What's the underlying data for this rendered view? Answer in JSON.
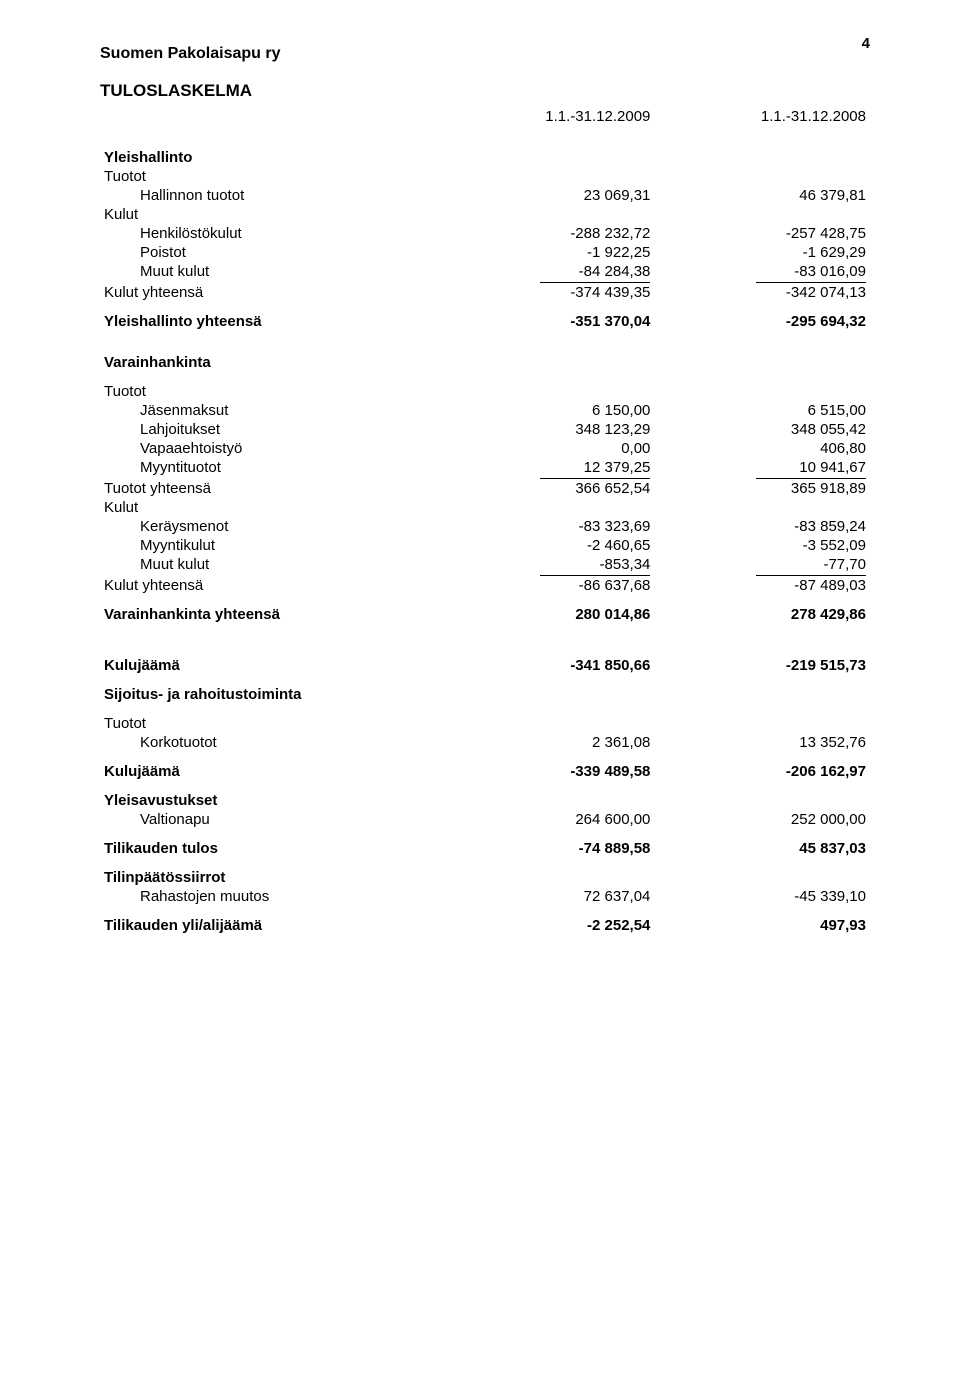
{
  "page_number": "4",
  "header": {
    "org": "Suomen Pakolaisapu ry",
    "title": "TULOSLASKELMA"
  },
  "period": {
    "col1": "1.1.-31.12.2009",
    "col2": "1.1.-31.12.2008"
  },
  "yleishallinto": {
    "title": "Yleishallinto",
    "tuotot_label": "Tuotot",
    "hallinnon_tuotot": {
      "label": "Hallinnon tuotot",
      "v1": "23 069,31",
      "v2": "46 379,81"
    },
    "kulut_label": "Kulut",
    "henkilostokulut": {
      "label": "Henkilöstökulut",
      "v1": "-288 232,72",
      "v2": "-257 428,75"
    },
    "poistot": {
      "label": "Poistot",
      "v1": "-1 922,25",
      "v2": "-1 629,29"
    },
    "muut_kulut": {
      "label": "Muut kulut",
      "v1": "-84 284,38",
      "v2": "-83 016,09"
    },
    "kulut_yhteensa": {
      "label": "Kulut yhteensä",
      "v1": "-374 439,35",
      "v2": "-342 074,13"
    },
    "yhteensa": {
      "label": "Yleishallinto yhteensä",
      "v1": "-351 370,04",
      "v2": "-295 694,32"
    }
  },
  "varainhankinta": {
    "title": "Varainhankinta",
    "tuotot_label": "Tuotot",
    "jasenmaksut": {
      "label": "Jäsenmaksut",
      "v1": "6 150,00",
      "v2": "6 515,00"
    },
    "lahjoitukset": {
      "label": "Lahjoitukset",
      "v1": "348 123,29",
      "v2": "348 055,42"
    },
    "vapaaehtoistyo": {
      "label": "Vapaaehtoistyö",
      "v1": "0,00",
      "v2": "406,80"
    },
    "myyntituotot": {
      "label": "Myyntituotot",
      "v1": "12 379,25",
      "v2": "10 941,67"
    },
    "tuotot_yhteensa": {
      "label": "Tuotot yhteensä",
      "v1": "366 652,54",
      "v2": "365 918,89"
    },
    "kulut_label": "Kulut",
    "keraysmenot": {
      "label": "Keräysmenot",
      "v1": "-83 323,69",
      "v2": "-83 859,24"
    },
    "myyntikulut": {
      "label": "Myyntikulut",
      "v1": "-2 460,65",
      "v2": "-3 552,09"
    },
    "muut_kulut": {
      "label": "Muut kulut",
      "v1": "-853,34",
      "v2": "-77,70"
    },
    "kulut_yhteensa": {
      "label": "Kulut yhteensä",
      "v1": "-86 637,68",
      "v2": "-87 489,03"
    },
    "yhteensa": {
      "label": "Varainhankinta yhteensä",
      "v1": "280 014,86",
      "v2": "278 429,86"
    }
  },
  "kulujaama1": {
    "label": "Kulujäämä",
    "v1": "-341 850,66",
    "v2": "-219 515,73"
  },
  "sijoitus": {
    "title": "Sijoitus- ja rahoitustoiminta",
    "tuotot_label": "Tuotot",
    "korkotuotot": {
      "label": "Korkotuotot",
      "v1": "2 361,08",
      "v2": "13 352,76"
    }
  },
  "kulujaama2": {
    "label": "Kulujäämä",
    "v1": "-339 489,58",
    "v2": "-206 162,97"
  },
  "yleisavustukset": {
    "title": "Yleisavustukset",
    "valtionapu": {
      "label": "Valtionapu",
      "v1": "264 600,00",
      "v2": "252 000,00"
    }
  },
  "tilikauden_tulos": {
    "label": "Tilikauden tulos",
    "v1": "-74 889,58",
    "v2": "45 837,03"
  },
  "tilinpaatossiirrot": {
    "title": "Tilinpäätössiirrot",
    "rahastojen_muutos": {
      "label": "Rahastojen muutos",
      "v1": "72 637,04",
      "v2": "-45 339,10"
    }
  },
  "yli_alijaama": {
    "label": "Tilikauden yli/alijäämä",
    "v1": "-2 252,54",
    "v2": "497,93"
  }
}
